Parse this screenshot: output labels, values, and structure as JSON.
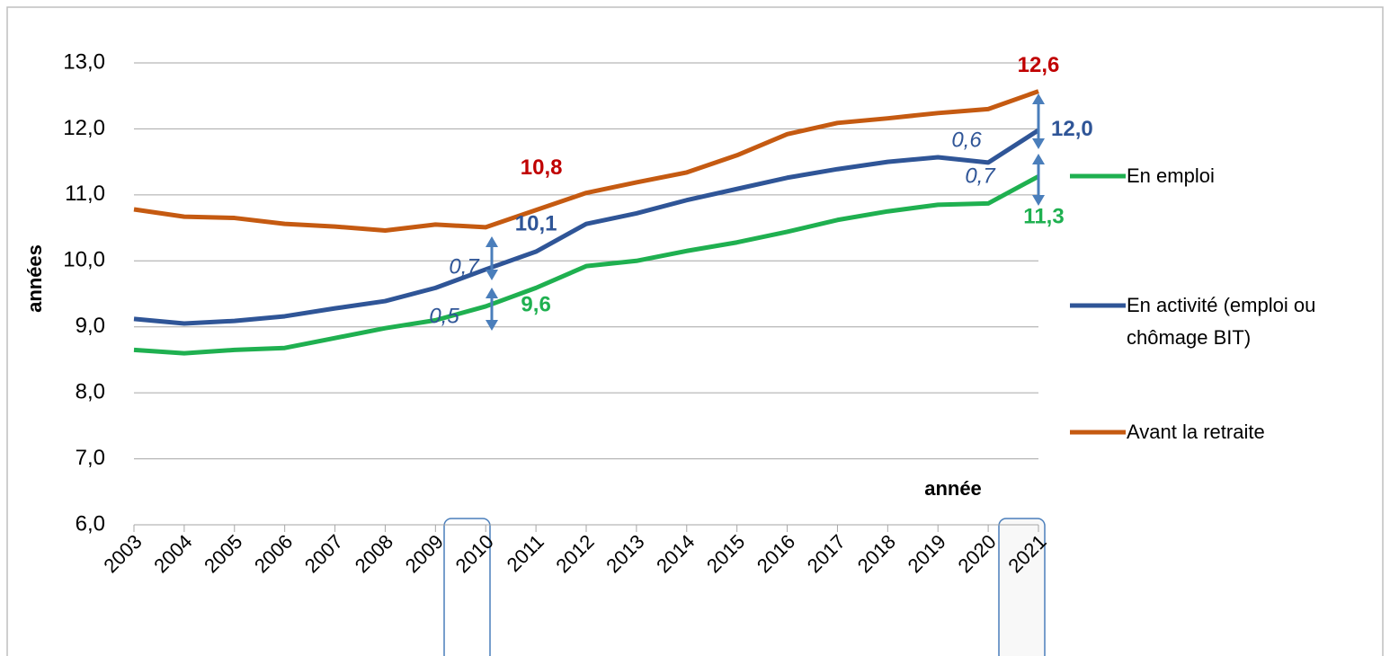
{
  "chart_data": {
    "type": "line",
    "categories": [
      "2003",
      "2004",
      "2005",
      "2006",
      "2007",
      "2008",
      "2009",
      "2010",
      "2011",
      "2012",
      "2013",
      "2014",
      "2015",
      "2016",
      "2017",
      "2018",
      "2019",
      "2020",
      "2021"
    ],
    "series": [
      {
        "name": "En emploi",
        "color": "#1fb050",
        "label_color": "#1fb050",
        "values": [
          8.65,
          8.6,
          8.65,
          8.68,
          8.83,
          8.98,
          9.1,
          9.31,
          9.59,
          9.92,
          10.0,
          10.15,
          10.28,
          10.44,
          10.62,
          10.75,
          10.85,
          10.87,
          11.28
        ],
        "value_labels": [
          null,
          null,
          null,
          null,
          null,
          null,
          null,
          null,
          "9,6",
          null,
          null,
          null,
          null,
          null,
          null,
          null,
          null,
          null,
          "11,3"
        ]
      },
      {
        "name": "En activité (emploi ou chômage BIT)",
        "color": "#2f5597",
        "label_color": "#2f5597",
        "values": [
          9.12,
          9.05,
          9.09,
          9.16,
          9.28,
          9.39,
          9.59,
          9.87,
          10.14,
          10.56,
          10.72,
          10.92,
          11.09,
          11.26,
          11.39,
          11.5,
          11.57,
          11.49,
          11.98
        ],
        "value_labels": [
          null,
          null,
          null,
          null,
          null,
          null,
          null,
          null,
          "10,1",
          null,
          null,
          null,
          null,
          null,
          null,
          null,
          null,
          null,
          "12,0"
        ]
      },
      {
        "name": "Avant la retraite",
        "color": "#c55a11",
        "label_color": "#c00000",
        "values": [
          10.78,
          10.67,
          10.65,
          10.56,
          10.52,
          10.46,
          10.55,
          10.51,
          10.77,
          11.03,
          11.19,
          11.34,
          11.6,
          11.92,
          12.09,
          12.16,
          12.24,
          12.3,
          12.57
        ],
        "value_labels": [
          null,
          null,
          null,
          null,
          null,
          null,
          null,
          null,
          "10,8",
          null,
          null,
          null,
          null,
          null,
          null,
          null,
          null,
          null,
          "12,6"
        ]
      }
    ],
    "ylim": [
      6,
      13
    ],
    "yticks": [
      {
        "value": 6,
        "label": "6,0"
      },
      {
        "value": 7,
        "label": "7,0"
      },
      {
        "value": 8,
        "label": "8,0"
      },
      {
        "value": 9,
        "label": "9,0"
      },
      {
        "value": 10,
        "label": "10,0"
      },
      {
        "value": 11,
        "label": "11,0"
      },
      {
        "value": 12,
        "label": "12,0"
      },
      {
        "value": 13,
        "label": "13,0"
      }
    ],
    "ylabel": "années",
    "xlabel": "année",
    "grid": true,
    "annotations": [
      "0,7",
      "0,5",
      "0,6",
      "0,7"
    ]
  }
}
